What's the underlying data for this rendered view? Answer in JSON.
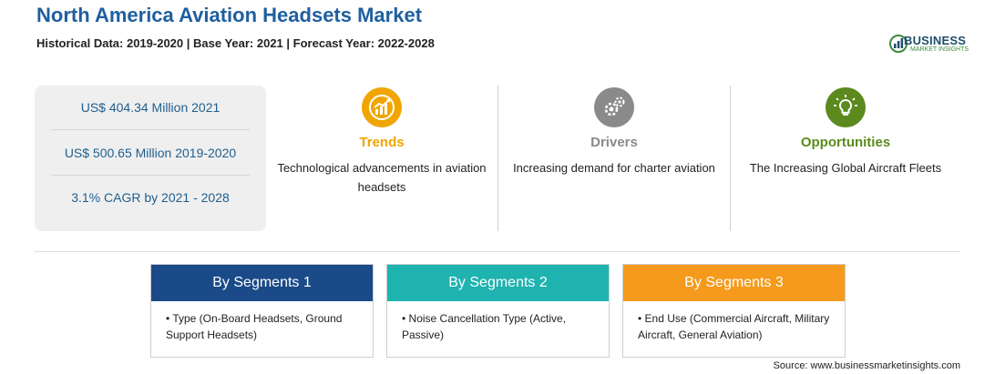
{
  "header": {
    "title": "North America Aviation Headsets Market",
    "subtitle": "Historical Data: 2019-2020 | Base Year: 2021 | Forecast Year: 2022-2028"
  },
  "logo": {
    "name": "BUSINESS",
    "sub": "MARKET INSIGHTS",
    "colors": {
      "primary": "#1f4e6b",
      "accent": "#3d8a3d"
    }
  },
  "stats": [
    {
      "text": "US$ 404.34 Million 2021"
    },
    {
      "text": "US$ 500.65 Million 2019-2020"
    },
    {
      "text": "3.1% CAGR by 2021 - 2028"
    }
  ],
  "features": [
    {
      "icon": "trend-chart-icon",
      "title": "Trends",
      "color": "#f0a500",
      "desc": "Technological advancements in aviation headsets"
    },
    {
      "icon": "gears-icon",
      "title": "Drivers",
      "color": "#8a8a8a",
      "desc": "Increasing demand for charter aviation"
    },
    {
      "icon": "lightbulb-icon",
      "title": "Opportunities",
      "color": "#5c8a1e",
      "desc": "The Increasing Global Aircraft Fleets"
    }
  ],
  "segments": [
    {
      "title": "By Segments 1",
      "color": "#1a4a87",
      "item": "• Type (On-Board Headsets, Ground Support Headsets)"
    },
    {
      "title": "By Segments 2",
      "color": "#1fb3b0",
      "item": "• Noise Cancellation Type (Active, Passive)"
    },
    {
      "title": "By Segments 3",
      "color": "#f59a1c",
      "item": "• End Use (Commercial Aircraft, Military Aircraft, General Aviation)"
    }
  ],
  "footer": {
    "source": "Source: www.businessmarketinsights.com"
  }
}
